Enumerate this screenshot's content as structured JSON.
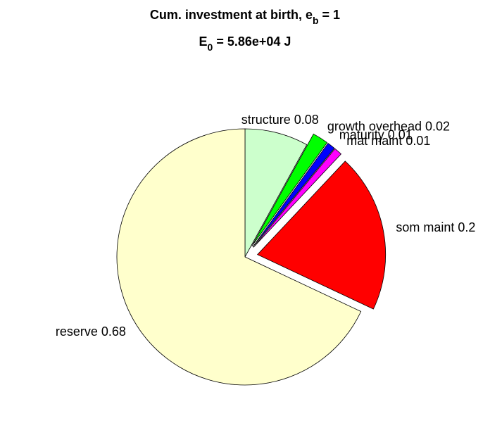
{
  "chart_data": {
    "type": "pie",
    "title": [
      "Cum. investment at birth, e",
      "b",
      " = 1"
    ],
    "subtitle": [
      "E",
      "0",
      " = 5.86e+04 J"
    ],
    "values": [
      0.08,
      0.02,
      0.01,
      0.01,
      0.2,
      0.68
    ],
    "value_labels": [
      "structure 0.08",
      "growth overhead 0.02",
      "maturity 0.01",
      "mat maint 0.01",
      "som maint 0.2",
      "reserve 0.68"
    ],
    "colors": [
      "#ccffcc",
      "#00ff00",
      "#0000ff",
      "#ff00ff",
      "#ff0000",
      "#ffffcc"
    ],
    "explode": [
      0,
      1,
      1,
      1,
      1,
      0
    ]
  }
}
